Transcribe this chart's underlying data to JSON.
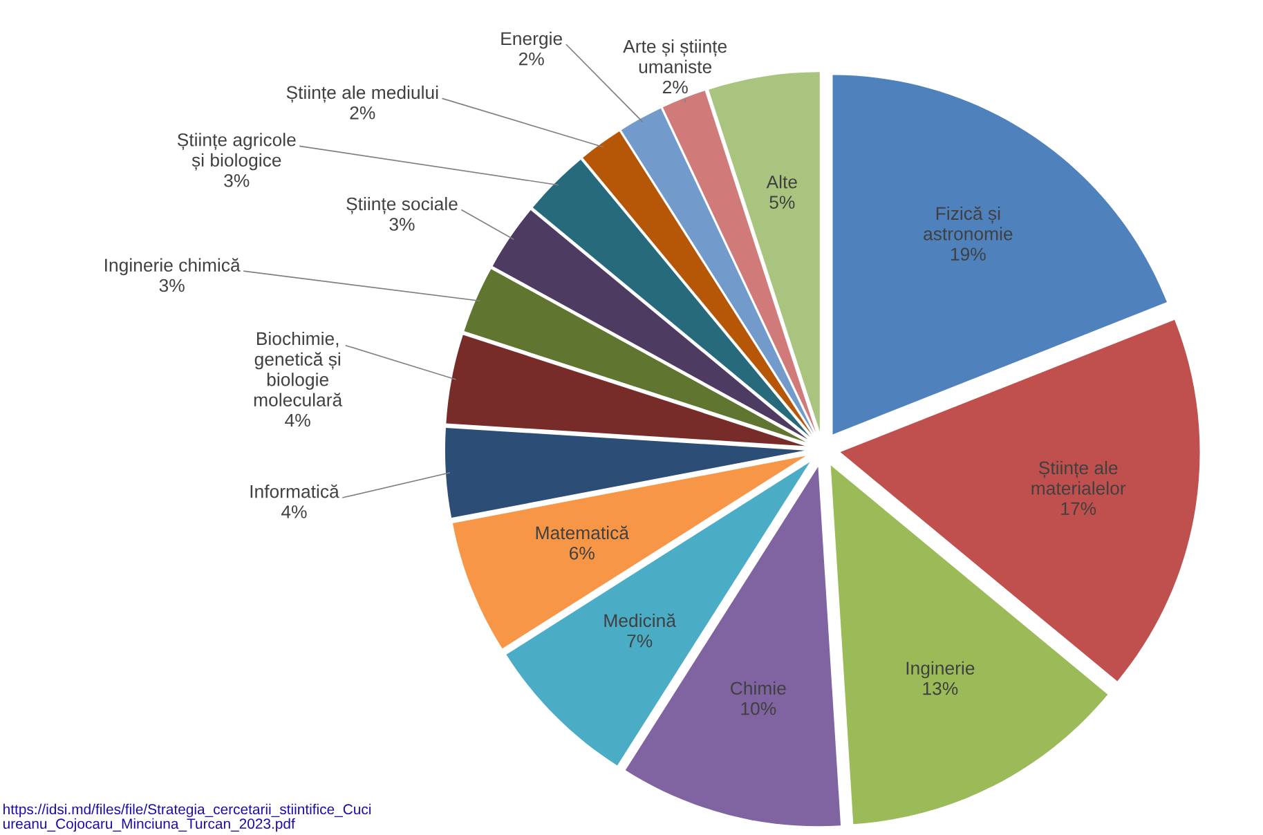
{
  "chart_data": {
    "type": "pie",
    "categories": [
      "Fizică și\nastronomie",
      "Științe ale\nmaterialelor",
      "Inginerie",
      "Chimie",
      "Medicină",
      "Matematică",
      "Informatică",
      "Biochimie,\ngenetică și\nbiologie\nmoleculară",
      "Inginerie chimică",
      "Științe sociale",
      "Științe agricole\nși biologice",
      "Științe ale mediului",
      "Energie",
      "Arte și științe\numaniste",
      "Alte"
    ],
    "values": [
      19,
      17,
      13,
      10,
      7,
      6,
      4,
      4,
      3,
      3,
      3,
      2,
      2,
      2,
      5
    ],
    "value_labels": [
      "19%",
      "17%",
      "13%",
      "10%",
      "7%",
      "6%",
      "4%",
      "4%",
      "3%",
      "3%",
      "3%",
      "2%",
      "2%",
      "2%",
      "5%"
    ],
    "colors": [
      "#4f81bd",
      "#c0504d",
      "#9bbb59",
      "#8064a2",
      "#4bacc6",
      "#f79646",
      "#2c4d75",
      "#772c2a",
      "#5f7530",
      "#4d3b62",
      "#276a7c",
      "#b65708",
      "#729aca",
      "#d07a79",
      "#a9c47f"
    ],
    "annotations": [
      "https://idsi.md/files/file/Strategia_cercetarii_stiintifice_Cuci\nureanu_Cojocaru_Minciuna_Turcan_2023.pdf"
    ]
  }
}
